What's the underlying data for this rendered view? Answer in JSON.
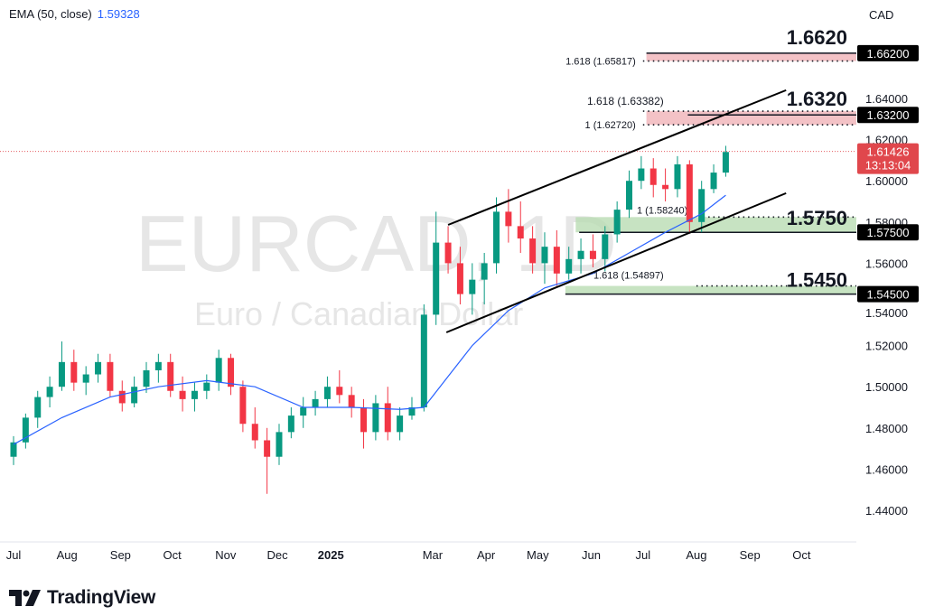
{
  "header": {
    "indicator": "EMA (50, close)",
    "indicator_value": "1.59328",
    "currency": "CAD"
  },
  "watermark": {
    "symbol": "EURCAD, 1D",
    "description": "Euro / Canadian Dollar"
  },
  "brand": {
    "name": "TradingView"
  },
  "colors": {
    "up": "#089981",
    "down": "#f23645",
    "ema": "#2962ff",
    "resistance_zone": "#f0b3b8",
    "support_zone": "#b9dcb3",
    "last_price": "#e0474c"
  },
  "chart_data": {
    "type": "candlestick",
    "ylim": [
      1.43,
      1.672
    ],
    "xlim": [
      "2024-06-28",
      "2025-10-31"
    ],
    "y_ticks": [
      "1.44000",
      "1.46000",
      "1.48000",
      "1.50000",
      "1.52000",
      "1.54000",
      "1.56000",
      "1.58000",
      "1.60000",
      "1.62000",
      "1.64000"
    ],
    "x_ticks": [
      {
        "label": "Jul",
        "date": "2024-07-01"
      },
      {
        "label": "Aug",
        "date": "2024-08-01"
      },
      {
        "label": "Sep",
        "date": "2024-09-01"
      },
      {
        "label": "Oct",
        "date": "2024-10-01"
      },
      {
        "label": "Nov",
        "date": "2024-11-01"
      },
      {
        "label": "Dec",
        "date": "2024-12-01"
      },
      {
        "label": "2025",
        "date": "2025-01-01",
        "bold": true
      },
      {
        "label": "Mar",
        "date": "2025-03-01"
      },
      {
        "label": "Apr",
        "date": "2025-04-01"
      },
      {
        "label": "May",
        "date": "2025-05-01"
      },
      {
        "label": "Jun",
        "date": "2025-06-01"
      },
      {
        "label": "Jul",
        "date": "2025-07-01"
      },
      {
        "label": "Aug",
        "date": "2025-08-01"
      },
      {
        "label": "Sep",
        "date": "2025-09-01"
      },
      {
        "label": "Oct",
        "date": "2025-10-01"
      }
    ],
    "ohlc": [
      [
        "2024-07-01",
        1.466,
        1.476,
        1.462,
        1.473
      ],
      [
        "2024-07-08",
        1.473,
        1.487,
        1.47,
        1.485
      ],
      [
        "2024-07-15",
        1.485,
        1.498,
        1.48,
        1.495
      ],
      [
        "2024-07-22",
        1.495,
        1.505,
        1.49,
        1.5
      ],
      [
        "2024-07-29",
        1.5,
        1.522,
        1.498,
        1.512
      ],
      [
        "2024-08-05",
        1.512,
        1.518,
        1.498,
        1.502
      ],
      [
        "2024-08-12",
        1.502,
        1.51,
        1.496,
        1.506
      ],
      [
        "2024-08-19",
        1.506,
        1.516,
        1.502,
        1.512
      ],
      [
        "2024-08-26",
        1.512,
        1.516,
        1.495,
        1.498
      ],
      [
        "2024-09-02",
        1.498,
        1.503,
        1.488,
        1.492
      ],
      [
        "2024-09-09",
        1.492,
        1.505,
        1.49,
        1.5
      ],
      [
        "2024-09-16",
        1.5,
        1.512,
        1.497,
        1.508
      ],
      [
        "2024-09-23",
        1.508,
        1.516,
        1.502,
        1.512
      ],
      [
        "2024-09-30",
        1.512,
        1.516,
        1.495,
        1.498
      ],
      [
        "2024-10-07",
        1.498,
        1.505,
        1.488,
        1.494
      ],
      [
        "2024-10-14",
        1.494,
        1.502,
        1.488,
        1.498
      ],
      [
        "2024-10-21",
        1.498,
        1.506,
        1.494,
        1.502
      ],
      [
        "2024-10-28",
        1.502,
        1.518,
        1.498,
        1.514
      ],
      [
        "2024-11-04",
        1.514,
        1.516,
        1.496,
        1.5
      ],
      [
        "2024-11-11",
        1.5,
        1.503,
        1.478,
        1.482
      ],
      [
        "2024-11-18",
        1.482,
        1.49,
        1.47,
        1.474
      ],
      [
        "2024-11-25",
        1.474,
        1.48,
        1.448,
        1.466
      ],
      [
        "2024-12-02",
        1.466,
        1.482,
        1.462,
        1.478
      ],
      [
        "2024-12-09",
        1.478,
        1.49,
        1.475,
        1.486
      ],
      [
        "2024-12-16",
        1.486,
        1.495,
        1.48,
        1.49
      ],
      [
        "2024-12-23",
        1.49,
        1.498,
        1.486,
        1.494
      ],
      [
        "2024-12-30",
        1.494,
        1.505,
        1.49,
        1.5
      ],
      [
        "2025-01-06",
        1.5,
        1.508,
        1.492,
        1.496
      ],
      [
        "2025-01-13",
        1.496,
        1.5,
        1.485,
        1.49
      ],
      [
        "2025-01-20",
        1.49,
        1.494,
        1.47,
        1.478
      ],
      [
        "2025-01-27",
        1.478,
        1.496,
        1.474,
        1.492
      ],
      [
        "2025-02-03",
        1.492,
        1.5,
        1.474,
        1.478
      ],
      [
        "2025-02-10",
        1.478,
        1.49,
        1.474,
        1.486
      ],
      [
        "2025-02-17",
        1.486,
        1.495,
        1.484,
        1.49
      ],
      [
        "2025-02-24",
        1.49,
        1.54,
        1.488,
        1.535
      ],
      [
        "2025-03-03",
        1.535,
        1.585,
        1.53,
        1.57
      ],
      [
        "2025-03-10",
        1.57,
        1.578,
        1.555,
        1.56
      ],
      [
        "2025-03-17",
        1.56,
        1.568,
        1.54,
        1.545
      ],
      [
        "2025-03-24",
        1.545,
        1.56,
        1.535,
        1.552
      ],
      [
        "2025-03-31",
        1.552,
        1.565,
        1.54,
        1.56
      ],
      [
        "2025-04-07",
        1.56,
        1.592,
        1.555,
        1.585
      ],
      [
        "2025-04-14",
        1.585,
        1.596,
        1.57,
        1.578
      ],
      [
        "2025-04-21",
        1.578,
        1.59,
        1.565,
        1.572
      ],
      [
        "2025-04-28",
        1.572,
        1.578,
        1.555,
        1.56
      ],
      [
        "2025-05-05",
        1.56,
        1.575,
        1.55,
        1.568
      ],
      [
        "2025-05-12",
        1.568,
        1.576,
        1.549,
        1.555
      ],
      [
        "2025-05-19",
        1.555,
        1.568,
        1.552,
        1.562
      ],
      [
        "2025-05-26",
        1.562,
        1.572,
        1.555,
        1.566
      ],
      [
        "2025-06-02",
        1.566,
        1.574,
        1.558,
        1.562
      ],
      [
        "2025-06-09",
        1.562,
        1.578,
        1.556,
        1.574
      ],
      [
        "2025-06-16",
        1.574,
        1.59,
        1.57,
        1.586
      ],
      [
        "2025-06-23",
        1.586,
        1.605,
        1.582,
        1.6
      ],
      [
        "2025-06-30",
        1.6,
        1.612,
        1.596,
        1.606
      ],
      [
        "2025-07-07",
        1.606,
        1.611,
        1.592,
        1.598
      ],
      [
        "2025-07-14",
        1.598,
        1.606,
        1.59,
        1.596
      ],
      [
        "2025-07-21",
        1.596,
        1.612,
        1.592,
        1.608
      ],
      [
        "2025-07-28",
        1.608,
        1.61,
        1.575,
        1.58
      ],
      [
        "2025-08-04",
        1.58,
        1.6,
        1.575,
        1.596
      ],
      [
        "2025-08-11",
        1.596,
        1.608,
        1.594,
        1.604
      ],
      [
        "2025-08-18",
        1.604,
        1.617,
        1.602,
        1.614
      ]
    ],
    "ema": [
      [
        "2024-07-01",
        1.472
      ],
      [
        "2024-07-29",
        1.485
      ],
      [
        "2024-08-26",
        1.495
      ],
      [
        "2024-09-23",
        1.5
      ],
      [
        "2024-10-21",
        1.503
      ],
      [
        "2024-11-18",
        1.5
      ],
      [
        "2024-12-16",
        1.49
      ],
      [
        "2025-01-13",
        1.49
      ],
      [
        "2025-02-10",
        1.489
      ],
      [
        "2025-02-24",
        1.49
      ],
      [
        "2025-03-10",
        1.505
      ],
      [
        "2025-03-24",
        1.52
      ],
      [
        "2025-04-14",
        1.537
      ],
      [
        "2025-05-05",
        1.548
      ],
      [
        "2025-06-02",
        1.555
      ],
      [
        "2025-06-23",
        1.565
      ],
      [
        "2025-07-14",
        1.575
      ],
      [
        "2025-08-04",
        1.584
      ],
      [
        "2025-08-18",
        1.593
      ]
    ],
    "channel": {
      "upper": [
        [
          "2025-03-10",
          1.5786
        ],
        [
          "2025-09-22",
          1.644
        ]
      ],
      "lower": [
        [
          "2025-03-09",
          1.5264
        ],
        [
          "2025-09-22",
          1.594
        ]
      ]
    },
    "levels": [
      {
        "label": "1.6620",
        "price_tag": "1.66200",
        "price": 1.662,
        "fib_label": "1.618 (1.65817)",
        "fib_price": 1.65817,
        "zone": "resistance",
        "zone_from": "2025-07-03",
        "solid_from": "2025-07-03",
        "dot_from": "2025-07-01"
      },
      {
        "label": "1.6320",
        "price_tag": "1.63200",
        "price": 1.632,
        "fib_label": "1 (1.62720)",
        "fib_price": 1.6272,
        "fib_label2": "1.618 (1.63382)",
        "fib_price2": 1.63382,
        "zone": "resistance",
        "zone_from": "2025-07-03",
        "solid_from": "2025-07-27",
        "dot_from": "2025-07-01"
      },
      {
        "label": "1.5750",
        "price_tag": "1.57500",
        "price": 1.575,
        "fib_label": "1 (1.58240)",
        "fib_price": 1.5824,
        "zone": "support",
        "zone_from": "2025-05-23",
        "solid_from": "2025-05-25",
        "dot_from": "2025-08-05"
      },
      {
        "label": "1.5450",
        "price_tag": "1.54500",
        "price": 1.545,
        "fib_label": "1.618 (1.54897)",
        "fib_price": 1.54897,
        "zone": "support",
        "zone_from": "2025-05-17",
        "solid_from": "2025-05-17",
        "dot_from": "2025-08-01"
      }
    ],
    "last_price": {
      "value": 1.61426,
      "label": "1.61426",
      "countdown": "13:13:04"
    }
  }
}
